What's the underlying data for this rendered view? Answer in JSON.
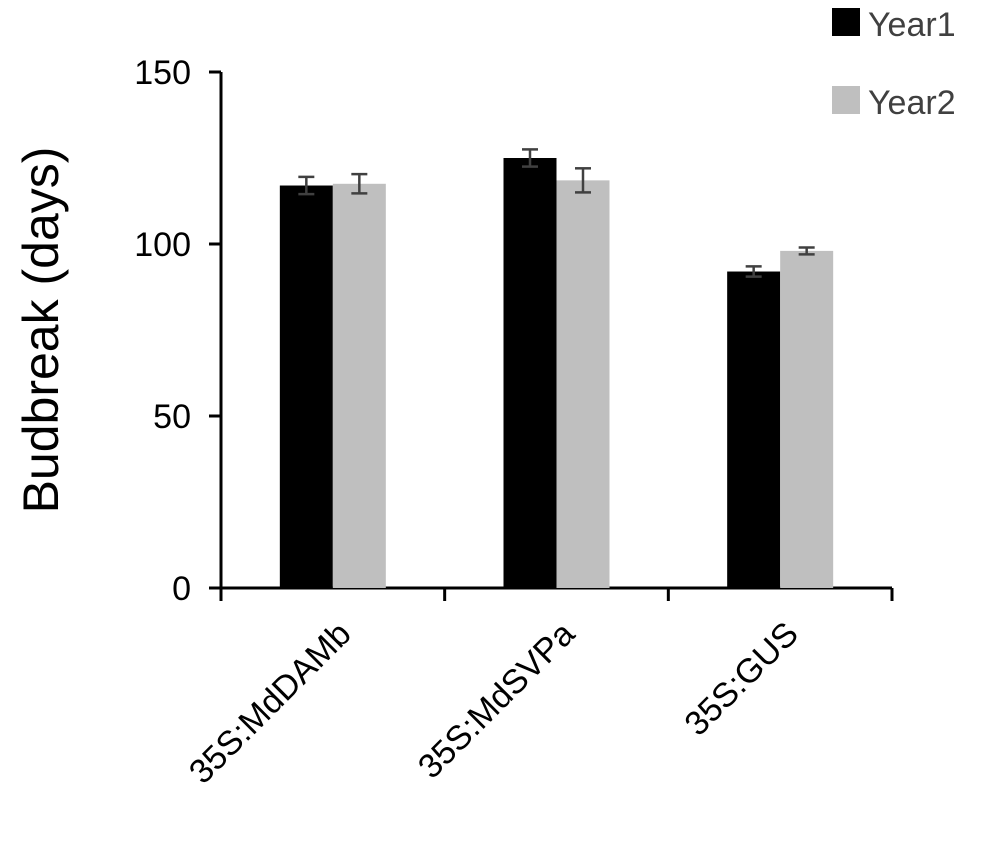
{
  "chart_data": {
    "type": "bar",
    "categories": [
      "35S:MdDAMb",
      "35S:MdSVPa",
      "35S:GUS"
    ],
    "series": [
      {
        "name": "Year1",
        "color": "#000000",
        "values": [
          117,
          125,
          92
        ],
        "errors": [
          2.5,
          2.5,
          1.5
        ]
      },
      {
        "name": "Year2",
        "color": "#bfbfbf",
        "values": [
          117.5,
          118.5,
          98
        ],
        "errors": [
          2.8,
          3.5,
          1.0
        ]
      }
    ],
    "ylabel": "Budbreak (days)",
    "xlabel": "",
    "ylim": [
      0,
      150
    ],
    "yticks": [
      0,
      50,
      100,
      150
    ],
    "error_bar_color": "#404040",
    "legend_position": "top-right",
    "grid": false
  }
}
